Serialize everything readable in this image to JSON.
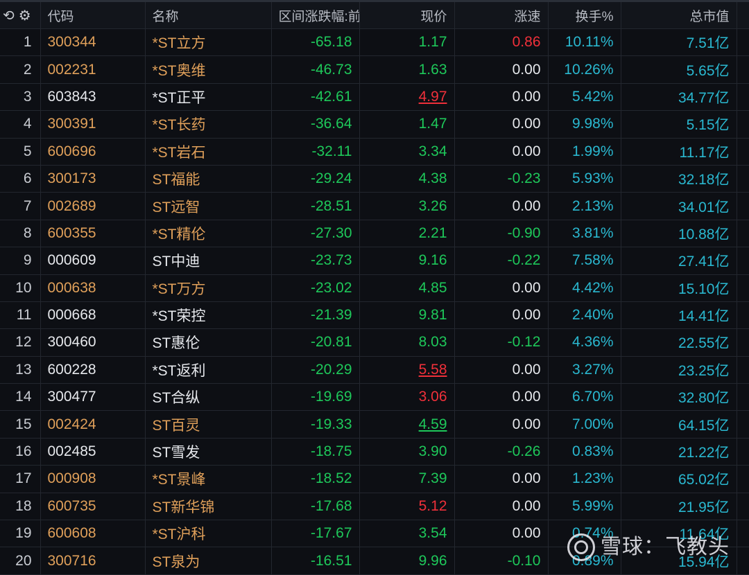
{
  "header": {
    "icons": [
      "refresh-icon",
      "gear-icon"
    ],
    "columns": {
      "code": "代码",
      "name": "名称",
      "range_change": "区间涨跌幅:前",
      "price": "现价",
      "speed": "涨速",
      "turnover": "换手%",
      "market_cap": "总市值"
    }
  },
  "colors": {
    "orange": "#e0a05a",
    "white": "#e6e8ec",
    "green": "#1ec85a",
    "red": "#f0303a",
    "cyan": "#2ab8d0"
  },
  "rows": [
    {
      "idx": "1",
      "code": "300344",
      "name": "*ST立方",
      "code_color": "orange",
      "change": "-65.18",
      "price": "1.17",
      "price_color": "green",
      "price_underline": false,
      "speed": "0.86",
      "speed_color": "red",
      "turnover": "10.11%",
      "cap": "7.51亿"
    },
    {
      "idx": "2",
      "code": "002231",
      "name": "*ST奥维",
      "code_color": "orange",
      "change": "-46.73",
      "price": "1.63",
      "price_color": "green",
      "price_underline": false,
      "speed": "0.00",
      "speed_color": "white",
      "turnover": "10.26%",
      "cap": "5.65亿"
    },
    {
      "idx": "3",
      "code": "603843",
      "name": "*ST正平",
      "code_color": "white",
      "change": "-42.61",
      "price": "4.97",
      "price_color": "red",
      "price_underline": true,
      "speed": "0.00",
      "speed_color": "white",
      "turnover": "5.42%",
      "cap": "34.77亿"
    },
    {
      "idx": "4",
      "code": "300391",
      "name": "*ST长药",
      "code_color": "orange",
      "change": "-36.64",
      "price": "1.47",
      "price_color": "green",
      "price_underline": false,
      "speed": "0.00",
      "speed_color": "white",
      "turnover": "9.98%",
      "cap": "5.15亿"
    },
    {
      "idx": "5",
      "code": "600696",
      "name": "*ST岩石",
      "code_color": "orange",
      "change": "-32.11",
      "price": "3.34",
      "price_color": "green",
      "price_underline": false,
      "speed": "0.00",
      "speed_color": "white",
      "turnover": "1.99%",
      "cap": "11.17亿"
    },
    {
      "idx": "6",
      "code": "300173",
      "name": "ST福能",
      "code_color": "orange",
      "change": "-29.24",
      "price": "4.38",
      "price_color": "green",
      "price_underline": false,
      "speed": "-0.23",
      "speed_color": "green",
      "turnover": "5.93%",
      "cap": "32.18亿"
    },
    {
      "idx": "7",
      "code": "002689",
      "name": "ST远智",
      "code_color": "orange",
      "change": "-28.51",
      "price": "3.26",
      "price_color": "green",
      "price_underline": false,
      "speed": "0.00",
      "speed_color": "white",
      "turnover": "2.13%",
      "cap": "34.01亿"
    },
    {
      "idx": "8",
      "code": "600355",
      "name": "*ST精伦",
      "code_color": "orange",
      "change": "-27.30",
      "price": "2.21",
      "price_color": "green",
      "price_underline": false,
      "speed": "-0.90",
      "speed_color": "green",
      "turnover": "3.81%",
      "cap": "10.88亿"
    },
    {
      "idx": "9",
      "code": "000609",
      "name": "ST中迪",
      "code_color": "white",
      "change": "-23.73",
      "price": "9.16",
      "price_color": "green",
      "price_underline": false,
      "speed": "-0.22",
      "speed_color": "green",
      "turnover": "7.58%",
      "cap": "27.41亿"
    },
    {
      "idx": "10",
      "code": "000638",
      "name": "*ST万方",
      "code_color": "orange",
      "change": "-23.02",
      "price": "4.85",
      "price_color": "green",
      "price_underline": false,
      "speed": "0.00",
      "speed_color": "white",
      "turnover": "4.42%",
      "cap": "15.10亿"
    },
    {
      "idx": "11",
      "code": "000668",
      "name": "*ST荣控",
      "code_color": "white",
      "change": "-21.39",
      "price": "9.81",
      "price_color": "green",
      "price_underline": false,
      "speed": "0.00",
      "speed_color": "white",
      "turnover": "2.40%",
      "cap": "14.41亿"
    },
    {
      "idx": "12",
      "code": "300460",
      "name": "ST惠伦",
      "code_color": "white",
      "change": "-20.81",
      "price": "8.03",
      "price_color": "green",
      "price_underline": false,
      "speed": "-0.12",
      "speed_color": "green",
      "turnover": "4.36%",
      "cap": "22.55亿"
    },
    {
      "idx": "13",
      "code": "600228",
      "name": "*ST返利",
      "code_color": "white",
      "change": "-20.29",
      "price": "5.58",
      "price_color": "red",
      "price_underline": true,
      "speed": "0.00",
      "speed_color": "white",
      "turnover": "3.27%",
      "cap": "23.25亿"
    },
    {
      "idx": "14",
      "code": "300477",
      "name": "ST合纵",
      "code_color": "white",
      "change": "-19.69",
      "price": "3.06",
      "price_color": "red",
      "price_underline": false,
      "speed": "0.00",
      "speed_color": "white",
      "turnover": "6.70%",
      "cap": "32.80亿"
    },
    {
      "idx": "15",
      "code": "002424",
      "name": "ST百灵",
      "code_color": "orange",
      "change": "-19.33",
      "price": "4.59",
      "price_color": "green",
      "price_underline": true,
      "speed": "0.00",
      "speed_color": "white",
      "turnover": "7.00%",
      "cap": "64.15亿"
    },
    {
      "idx": "16",
      "code": "002485",
      "name": "ST雪发",
      "code_color": "white",
      "change": "-18.75",
      "price": "3.90",
      "price_color": "green",
      "price_underline": false,
      "speed": "-0.26",
      "speed_color": "green",
      "turnover": "0.83%",
      "cap": "21.22亿"
    },
    {
      "idx": "17",
      "code": "000908",
      "name": "*ST景峰",
      "code_color": "orange",
      "change": "-18.52",
      "price": "7.39",
      "price_color": "green",
      "price_underline": false,
      "speed": "0.00",
      "speed_color": "white",
      "turnover": "1.23%",
      "cap": "65.02亿"
    },
    {
      "idx": "18",
      "code": "600735",
      "name": "ST新华锦",
      "code_color": "orange",
      "change": "-17.68",
      "price": "5.12",
      "price_color": "red",
      "price_underline": false,
      "speed": "0.00",
      "speed_color": "white",
      "turnover": "5.99%",
      "cap": "21.95亿"
    },
    {
      "idx": "19",
      "code": "600608",
      "name": "*ST沪科",
      "code_color": "orange",
      "change": "-17.67",
      "price": "3.54",
      "price_color": "green",
      "price_underline": false,
      "speed": "0.00",
      "speed_color": "white",
      "turnover": "0.74%",
      "cap": "11.64亿"
    },
    {
      "idx": "20",
      "code": "300716",
      "name": "ST泉为",
      "code_color": "orange",
      "change": "-16.51",
      "price": "9.96",
      "price_color": "green",
      "price_underline": false,
      "speed": "-0.10",
      "speed_color": "green",
      "turnover": "0.89%",
      "cap": "15.94亿"
    }
  ],
  "watermark": {
    "logo_icon": "xueqiu-logo-icon",
    "text": "雪球：飞教头"
  }
}
